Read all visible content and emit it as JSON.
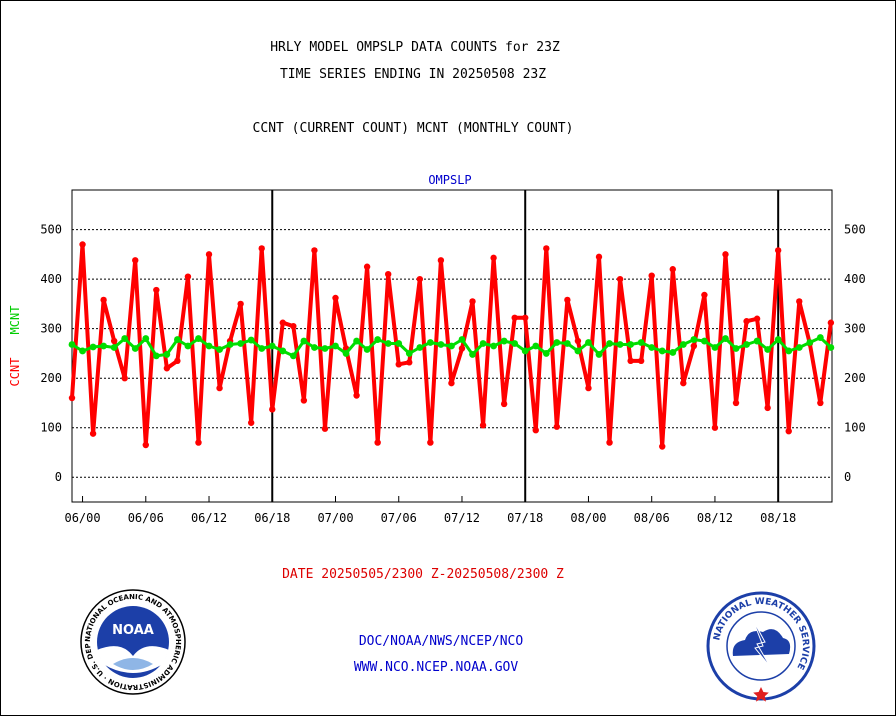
{
  "header": {
    "title_line1": "HRLY MODEL OMPSLP DATA COUNTS for 23Z",
    "title_line2": "TIME SERIES ENDING IN 20250508 23Z",
    "legend_desc": "CCNT (CURRENT COUNT) MCNT (MONTHLY COUNT)"
  },
  "footer": {
    "date_range": "DATE 20250505/2300 Z-20250508/2300 Z",
    "org_line": "DOC/NOAA/NWS/NCEP/NCO",
    "url_line": "WWW.NCO.NCEP.NOAA.GOV"
  },
  "logos": {
    "noaa_text": "NOAA",
    "noaa_ring_text": "NATIONAL OCEANIC AND ATMOSPHERIC ADMINISTRATION · U.S. DEPARTMENT OF COMMERCE",
    "nws_ring_text": "NATIONAL WEATHER SERVICE"
  },
  "colors": {
    "ccnt": "#ff0000",
    "mcnt": "#00dd00",
    "title": "#000000",
    "chart_title": "#0000cc",
    "date_text": "#dd0000",
    "footer_text": "#0000cc"
  },
  "chart_data": {
    "type": "line",
    "title": "OMPSLP",
    "ylabel_ccnt": "CCNT",
    "ylabel_mcnt": "MCNT",
    "ylim": [
      -50,
      580
    ],
    "yticks": [
      0,
      100,
      200,
      300,
      400,
      500
    ],
    "grid": true,
    "xticks": [
      "06/00",
      "06/06",
      "06/12",
      "06/18",
      "07/00",
      "07/06",
      "07/12",
      "07/18",
      "08/00",
      "08/06",
      "08/12",
      "08/18"
    ],
    "day_boundary_labels": [
      "06/18",
      "07/18",
      "08/18"
    ],
    "series": [
      {
        "name": "CCNT",
        "values": [
          160,
          470,
          88,
          358,
          275,
          200,
          438,
          65,
          378,
          220,
          235,
          405,
          70,
          450,
          180,
          275,
          350,
          110,
          462,
          137,
          312,
          305,
          155,
          458,
          98,
          362,
          260,
          165,
          425,
          70,
          410,
          228,
          232,
          400,
          70,
          438,
          190,
          260,
          355,
          105,
          443,
          148,
          322,
          322,
          95,
          462,
          102,
          358,
          275,
          180,
          445,
          70,
          400,
          235,
          235,
          407,
          62,
          420,
          190,
          265,
          368,
          100,
          450,
          150,
          315,
          320,
          140,
          458,
          93,
          355,
          270,
          150,
          312
        ]
      },
      {
        "name": "MCNT",
        "values": [
          268,
          255,
          263,
          265,
          262,
          280,
          260,
          280,
          245,
          248,
          278,
          265,
          280,
          265,
          258,
          268,
          270,
          277,
          260,
          265,
          255,
          245,
          275,
          262,
          260,
          265,
          250,
          275,
          258,
          278,
          270,
          270,
          250,
          262,
          272,
          268,
          265,
          278,
          248,
          270,
          265,
          275,
          270,
          255,
          265,
          250,
          272,
          270,
          255,
          272,
          248,
          270,
          268,
          268,
          272,
          262,
          255,
          252,
          268,
          278,
          275,
          262,
          280,
          260,
          268,
          275,
          258,
          278,
          255,
          262,
          272,
          282,
          262
        ]
      }
    ]
  }
}
